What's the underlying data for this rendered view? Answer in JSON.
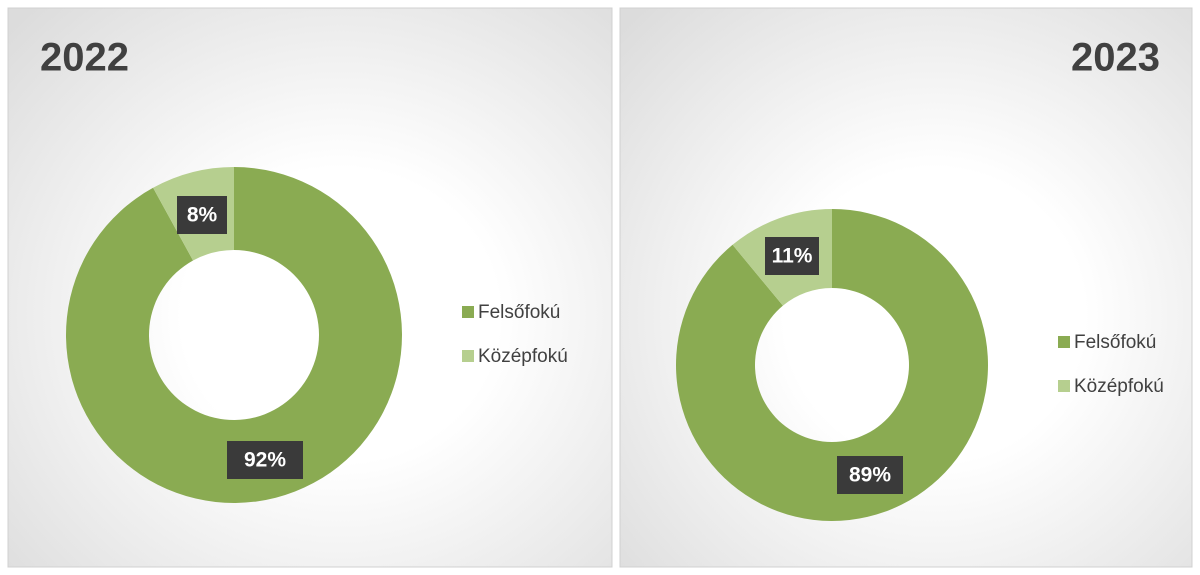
{
  "chart_data": [
    {
      "type": "donut",
      "title": "2022",
      "categories": [
        "Felsőfokú",
        "Középfokú"
      ],
      "values": [
        92,
        8
      ],
      "value_labels": [
        "92%",
        "8%"
      ],
      "colors": [
        "#8aab52",
        "#b6cf8f"
      ],
      "legend": "right"
    },
    {
      "type": "donut",
      "title": "2023",
      "categories": [
        "Felsőfokú",
        "Középfokú"
      ],
      "values": [
        89,
        11
      ],
      "value_labels": [
        "89%",
        "11%"
      ],
      "colors": [
        "#8aab52",
        "#b6cf8f"
      ],
      "legend": "right"
    }
  ]
}
